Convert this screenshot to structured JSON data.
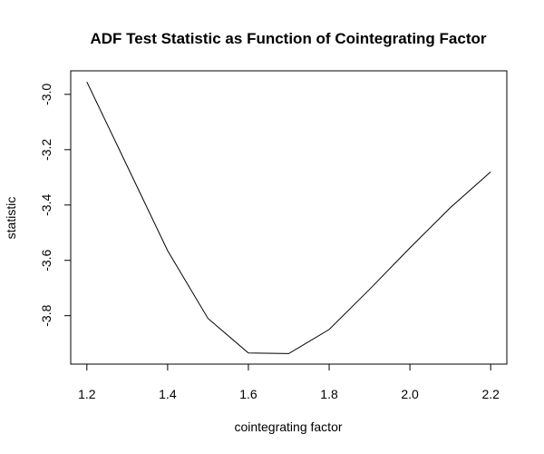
{
  "chart_data": {
    "type": "line",
    "title": "ADF Test Statistic as Function of Cointegrating Factor",
    "xlabel": "cointegrating factor",
    "ylabel": "statistic",
    "x": [
      1.2,
      1.3,
      1.4,
      1.5,
      1.6,
      1.7,
      1.8,
      1.9,
      2.0,
      2.1,
      2.2
    ],
    "series": [
      {
        "values": [
          -2.955,
          -3.26,
          -3.565,
          -3.81,
          -3.935,
          -3.937,
          -3.85,
          -3.705,
          -3.555,
          -3.41,
          -3.28
        ]
      }
    ],
    "xlim": [
      1.16,
      2.24
    ],
    "ylim": [
      -3.975,
      -2.915
    ],
    "xticks": [
      1.2,
      1.4,
      1.6,
      1.8,
      2.0,
      2.2
    ],
    "xtick_labels": [
      "1.2",
      "1.4",
      "1.6",
      "1.8",
      "2.0",
      "2.2"
    ],
    "yticks": [
      -3.8,
      -3.6,
      -3.4,
      -3.2,
      -3.0
    ],
    "ytick_labels": [
      "-3.8",
      "-3.6",
      "-3.4",
      "-3.2",
      "-3.0"
    ],
    "grid": false,
    "line_color": "#000000"
  }
}
